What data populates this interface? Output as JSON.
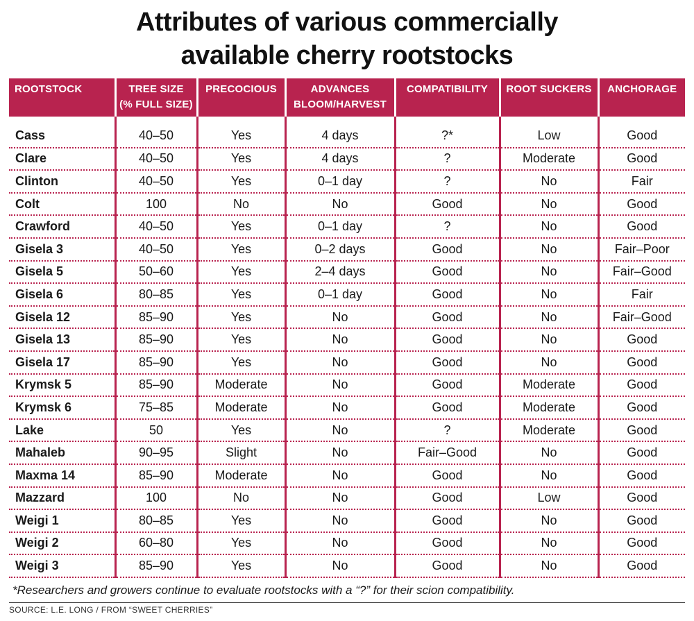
{
  "title": {
    "line1": "Attributes of various commercially",
    "line2": "available cherry rootstocks"
  },
  "headers": [
    {
      "line1": "ROOTSTOCK",
      "line2": ""
    },
    {
      "line1": "TREE SIZE",
      "line2": "(% FULL SIZE)"
    },
    {
      "line1": "PRECOCIOUS",
      "line2": ""
    },
    {
      "line1": "ADVANCES",
      "line2": "BLOOM/HARVEST"
    },
    {
      "line1": "COMPATIBILITY",
      "line2": ""
    },
    {
      "line1": "ROOT SUCKERS",
      "line2": ""
    },
    {
      "line1": "ANCHORAGE",
      "line2": ""
    }
  ],
  "rows": [
    [
      "Cass",
      "40–50",
      "Yes",
      "4 days",
      "?*",
      "Low",
      "Good"
    ],
    [
      "Clare",
      "40–50",
      "Yes",
      "4 days",
      "?",
      "Moderate",
      "Good"
    ],
    [
      "Clinton",
      "40–50",
      "Yes",
      "0–1 day",
      "?",
      "No",
      "Fair"
    ],
    [
      "Colt",
      "100",
      "No",
      "No",
      "Good",
      "No",
      "Good"
    ],
    [
      "Crawford",
      "40–50",
      "Yes",
      "0–1 day",
      "?",
      "No",
      "Good"
    ],
    [
      "Gisela 3",
      "40–50",
      "Yes",
      "0–2 days",
      "Good",
      "No",
      "Fair–Poor"
    ],
    [
      "Gisela 5",
      "50–60",
      "Yes",
      "2–4 days",
      "Good",
      "No",
      "Fair–Good"
    ],
    [
      "Gisela 6",
      "80–85",
      "Yes",
      "0–1 day",
      "Good",
      "No",
      "Fair"
    ],
    [
      "Gisela 12",
      "85–90",
      "Yes",
      "No",
      "Good",
      "No",
      "Fair–Good"
    ],
    [
      "Gisela 13",
      "85–90",
      "Yes",
      "No",
      "Good",
      "No",
      "Good"
    ],
    [
      "Gisela 17",
      "85–90",
      "Yes",
      "No",
      "Good",
      "No",
      "Good"
    ],
    [
      "Krymsk 5",
      "85–90",
      "Moderate",
      "No",
      "Good",
      "Moderate",
      "Good"
    ],
    [
      "Krymsk 6",
      "75–85",
      "Moderate",
      "No",
      "Good",
      "Moderate",
      "Good"
    ],
    [
      "Lake",
      "50",
      "Yes",
      "No",
      "?",
      "Moderate",
      "Good"
    ],
    [
      "Mahaleb",
      "90–95",
      "Slight",
      "No",
      "Fair–Good",
      "No",
      "Good"
    ],
    [
      "Maxma 14",
      "85–90",
      "Moderate",
      "No",
      "Good",
      "No",
      "Good"
    ],
    [
      "Mazzard",
      "100",
      "No",
      "No",
      "Good",
      "Low",
      "Good"
    ],
    [
      "Weigi 1",
      "80–85",
      "Yes",
      "No",
      "Good",
      "No",
      "Good"
    ],
    [
      "Weigi 2",
      "60–80",
      "Yes",
      "No",
      "Good",
      "No",
      "Good"
    ],
    [
      "Weigi 3",
      "85–90",
      "Yes",
      "No",
      "Good",
      "No",
      "Good"
    ]
  ],
  "footnote": "*Researchers and growers continue to evaluate rootstocks with a “?”  for their scion compatibility.",
  "source": "SOURCE: L.E. LONG / FROM “SWEET CHERRIES”",
  "colors": {
    "header_bg": "#b8234f",
    "header_text": "#ffffff",
    "rule": "#b8234f"
  }
}
